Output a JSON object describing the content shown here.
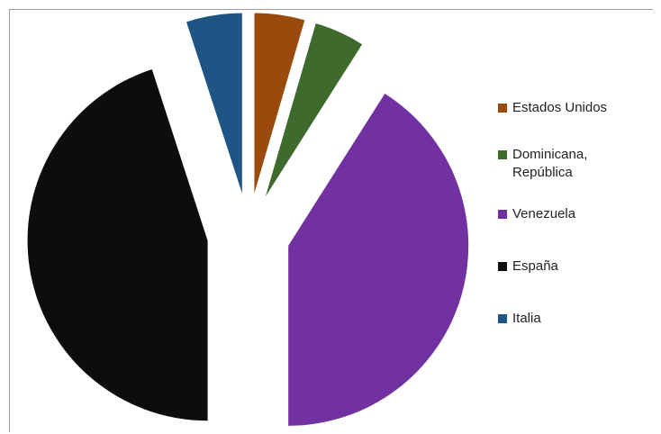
{
  "chart_data": {
    "type": "pie",
    "title": "",
    "categories": [
      "Estados Unidos",
      "Dominicana,\nRepública",
      "Venezuela",
      "España",
      "Italia"
    ],
    "values": [
      4.5,
      4.5,
      41,
      45,
      5
    ],
    "colors": [
      "#9a4a0c",
      "#3f6a2e",
      "#7131a1",
      "#0d0d0d",
      "#1f5585"
    ],
    "legend_position": "right",
    "exploded": true
  }
}
